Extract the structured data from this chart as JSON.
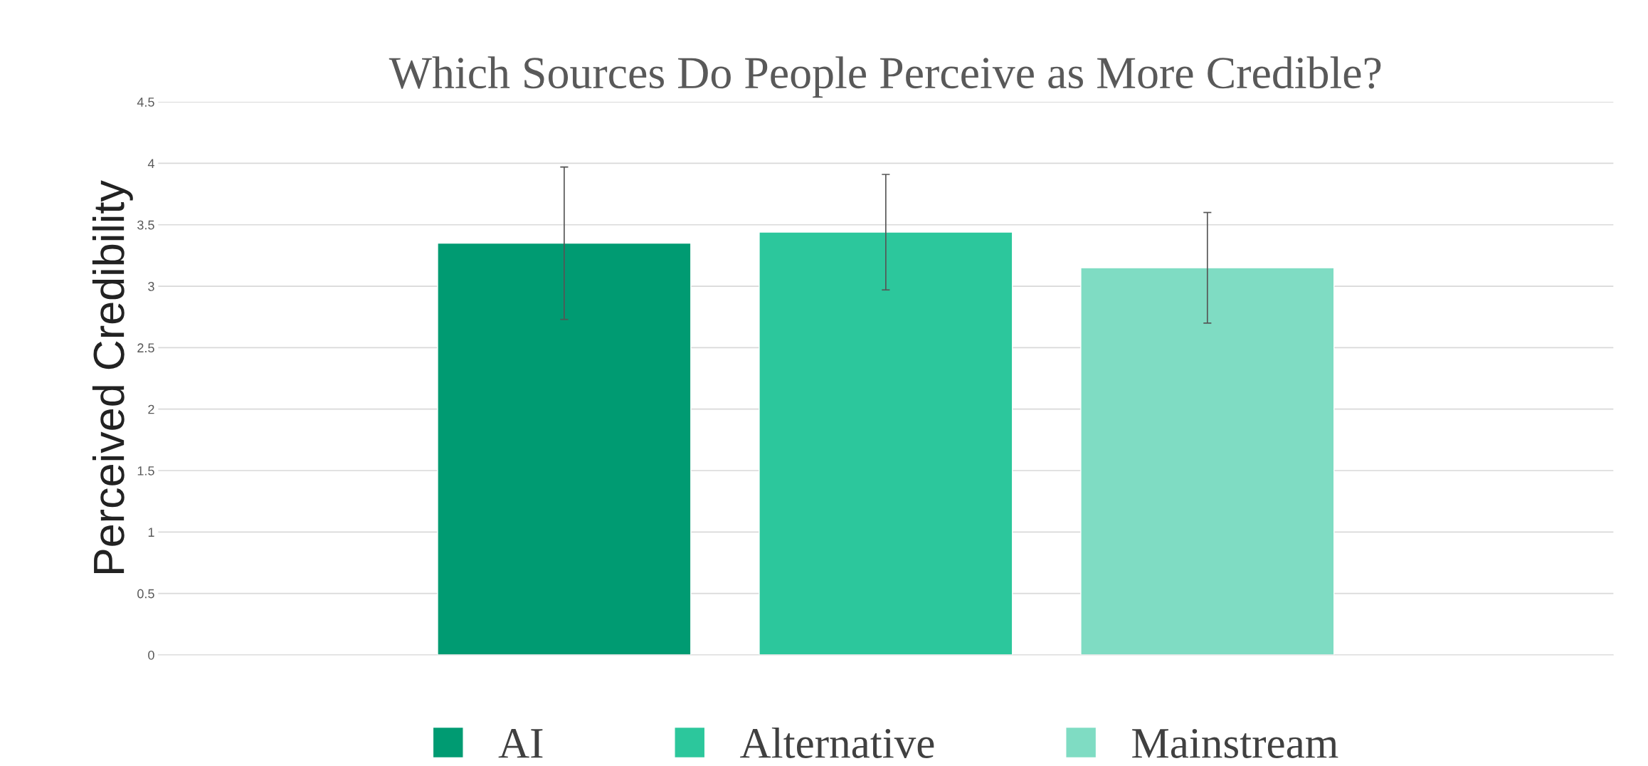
{
  "chart_data": {
    "type": "bar",
    "title": "Which Sources Do People Perceive as More Credible?",
    "ylabel": "Perceived Credibility",
    "categories": [
      null
    ],
    "series": [
      {
        "name": "AI",
        "color": "#009b72",
        "values": [
          3.35
        ],
        "errors": [
          0.62
        ]
      },
      {
        "name": "Alternative",
        "color": "#2cc79c",
        "values": [
          3.44
        ],
        "errors": [
          0.47
        ]
      },
      {
        "name": "Mainstream",
        "color": "#7fdcc3",
        "values": [
          3.15
        ],
        "errors": [
          0.45
        ]
      }
    ],
    "ylim": [
      0,
      4.5
    ],
    "yticks": [
      0,
      0.5,
      1,
      1.5,
      2,
      2.5,
      3,
      3.5,
      4,
      4.5
    ],
    "grid": "y",
    "legend": "bottom"
  }
}
